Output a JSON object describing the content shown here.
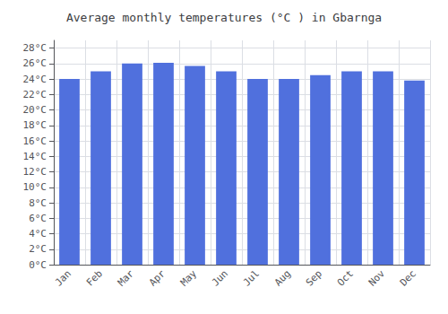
{
  "chart_data": {
    "type": "bar",
    "title": "Average monthly temperatures (°C ) in Gbarnga",
    "categories": [
      "Jan",
      "Feb",
      "Mar",
      "Apr",
      "May",
      "Jun",
      "Jul",
      "Aug",
      "Sep",
      "Oct",
      "Nov",
      "Dec"
    ],
    "values": [
      24.0,
      25.0,
      26.0,
      26.1,
      25.7,
      25.0,
      24.0,
      24.0,
      24.5,
      25.0,
      25.0,
      23.8
    ],
    "ylim": [
      0,
      29
    ],
    "yticks": [
      {
        "value": 0,
        "label": "0°C"
      },
      {
        "value": 2,
        "label": "2°C"
      },
      {
        "value": 4,
        "label": "4°C"
      },
      {
        "value": 6,
        "label": "6°C"
      },
      {
        "value": 8,
        "label": "8°C"
      },
      {
        "value": 10,
        "label": "10°C"
      },
      {
        "value": 12,
        "label": "12°C"
      },
      {
        "value": 14,
        "label": "14°C"
      },
      {
        "value": 16,
        "label": "16°C"
      },
      {
        "value": 18,
        "label": "18°C"
      },
      {
        "value": 20,
        "label": "20°C"
      },
      {
        "value": 22,
        "label": "22°C"
      },
      {
        "value": 24,
        "label": "24°C"
      },
      {
        "value": 26,
        "label": "26°C"
      },
      {
        "value": 28,
        "label": "28°C"
      }
    ],
    "grid": true
  }
}
